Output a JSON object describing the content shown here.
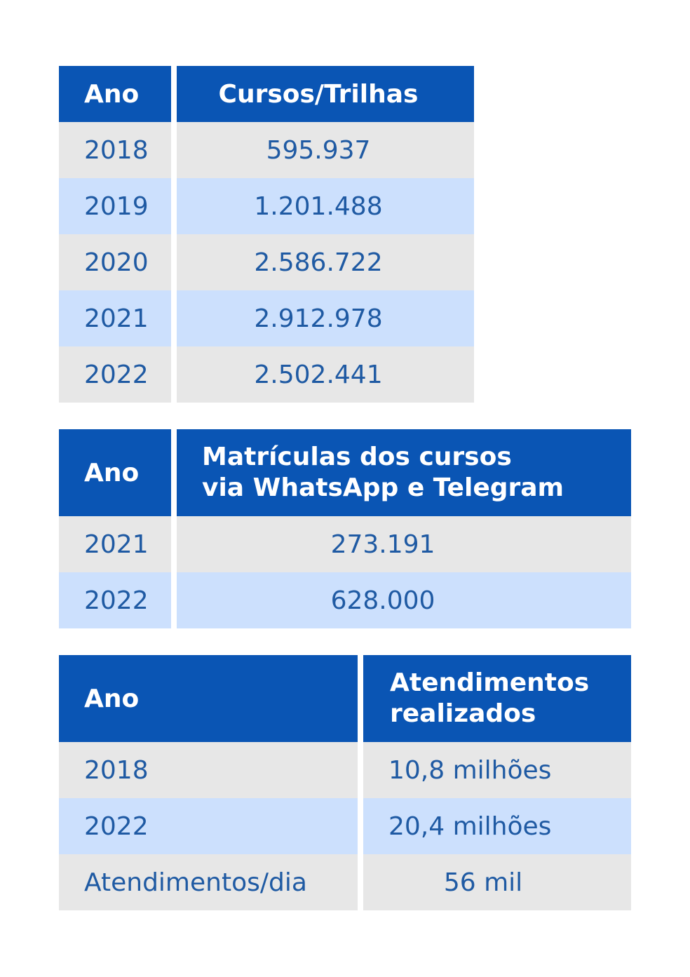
{
  "table1": {
    "headers": [
      "Ano",
      "Cursos/Trilhas"
    ],
    "rows": [
      [
        "2018",
        "595.937"
      ],
      [
        "2019",
        "1.201.488"
      ],
      [
        "2020",
        "2.586.722"
      ],
      [
        "2021",
        "2.912.978"
      ],
      [
        "2022",
        "2.502.441"
      ]
    ]
  },
  "table2": {
    "headers": [
      "Ano",
      "Matrículas dos cursos\nvia WhatsApp e Telegram"
    ],
    "rows": [
      [
        "2021",
        "273.191"
      ],
      [
        "2022",
        "628.000"
      ]
    ]
  },
  "table3": {
    "headers": [
      "Ano",
      "Atendimentos\nrealizados"
    ],
    "rows": [
      [
        "2018",
        "10,8 milhões"
      ],
      [
        "2022",
        "20,4 milhões"
      ],
      [
        "Atendimentos/dia",
        "56 mil"
      ]
    ]
  },
  "colors": {
    "header_bg": "#0a55b4",
    "row_gray": "#e7e7e7",
    "row_blue": "#cce0fd",
    "text": "#1f5aa3"
  }
}
